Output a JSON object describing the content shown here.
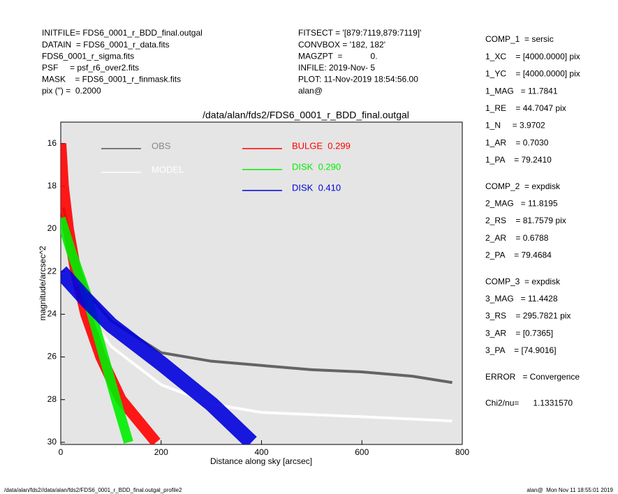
{
  "header": {
    "left": [
      "INITFILE= FDS6_0001_r_BDD_final.outgal",
      "DATAIN  = FDS6_0001_r_data.fits",
      "FDS6_0001_r_sigma.fits",
      "PSF     = psf_r6_over2.fits",
      "MASK    = FDS6_0001_r_finmask.fits",
      "pix (\") =  0.2000"
    ],
    "middle": [
      "FITSECT = '[879:7119,879:7119]'",
      "CONVBOX = '182, 182'",
      "MAGZPT  =            0.",
      "INFILE: 2019-Nov- 5",
      "PLOT: 11-Nov-2019 18:54:56.00",
      "alan@"
    ]
  },
  "components": [
    [
      "COMP_1  = sersic",
      "1_XC    = [4000.0000] pix",
      "1_YC    = [4000.0000] pix",
      "1_MAG   = 11.7841",
      "1_RE    = 44.7047 pix",
      "1_N     = 3.9702",
      "1_AR    = 0.7030",
      "1_PA    = 79.2410"
    ],
    [
      "COMP_2  = expdisk",
      "2_MAG   = 11.8195",
      "2_RS    = 81.7579 pix",
      "2_AR    = 0.6788",
      "2_PA    = 79.4684"
    ],
    [
      "COMP_3  = expdisk",
      "3_MAG   = 11.4428",
      "3_RS    = 295.7821 pix",
      "3_AR    = [0.7365]",
      "3_PA    = [74.9016]"
    ],
    [
      "ERROR   = Convergence"
    ],
    [
      "Chi2/nu=      1.1331570"
    ]
  ],
  "footer": {
    "left": "/data/alan/fds2//data/alan/fds2/FDS6_0001_r_BDD_final.outgal_profile2",
    "right": "alan@  Mon Nov 11 18:55:01 2019"
  },
  "chart_data": {
    "type": "line",
    "title": "/data/alan/fds2/FDS6_0001_r_BDD_final.outgal",
    "xlabel": "Distance along sky [arcsec]",
    "ylabel": "magnitude/arcsec^2",
    "xlim": [
      0,
      800
    ],
    "ylim": [
      30.1,
      15
    ],
    "xticks": [
      0,
      200,
      400,
      600,
      800
    ],
    "yticks": [
      16,
      18,
      20,
      22,
      24,
      26,
      28,
      30
    ],
    "background": "#e5e5e5",
    "series": [
      {
        "name": "OBS",
        "color": "#555555",
        "x": [
          5,
          30,
          60,
          100,
          200,
          300,
          400,
          500,
          600,
          700,
          780
        ],
        "values": [
          19,
          21.5,
          23.2,
          24.3,
          25.8,
          26.2,
          26.4,
          26.6,
          26.7,
          26.9,
          27.2
        ]
      },
      {
        "name": "MODEL",
        "color": "#ffffff",
        "x": [
          0,
          50,
          100,
          200,
          300,
          400,
          600,
          780
        ],
        "values": [
          20,
          23.8,
          25.5,
          27.3,
          28.2,
          28.6,
          28.8,
          29
        ]
      },
      {
        "name": "BULGE  0.299",
        "color": "#ff0000",
        "x": [
          0,
          5,
          15,
          30,
          50,
          80,
          120,
          190
        ],
        "values": [
          16,
          18,
          20,
          22,
          24,
          26,
          28,
          30
        ]
      },
      {
        "name": "DISK  0.290",
        "color": "#00ee00",
        "x": [
          0,
          20,
          50,
          80,
          110,
          135
        ],
        "values": [
          19.5,
          21,
          23,
          25.5,
          28,
          30
        ]
      },
      {
        "name": "DISK  0.410",
        "color": "#0000dd",
        "x": [
          0,
          50,
          100,
          200,
          300,
          380
        ],
        "values": [
          22,
          23.3,
          24.5,
          26.3,
          28.2,
          30
        ]
      }
    ]
  }
}
